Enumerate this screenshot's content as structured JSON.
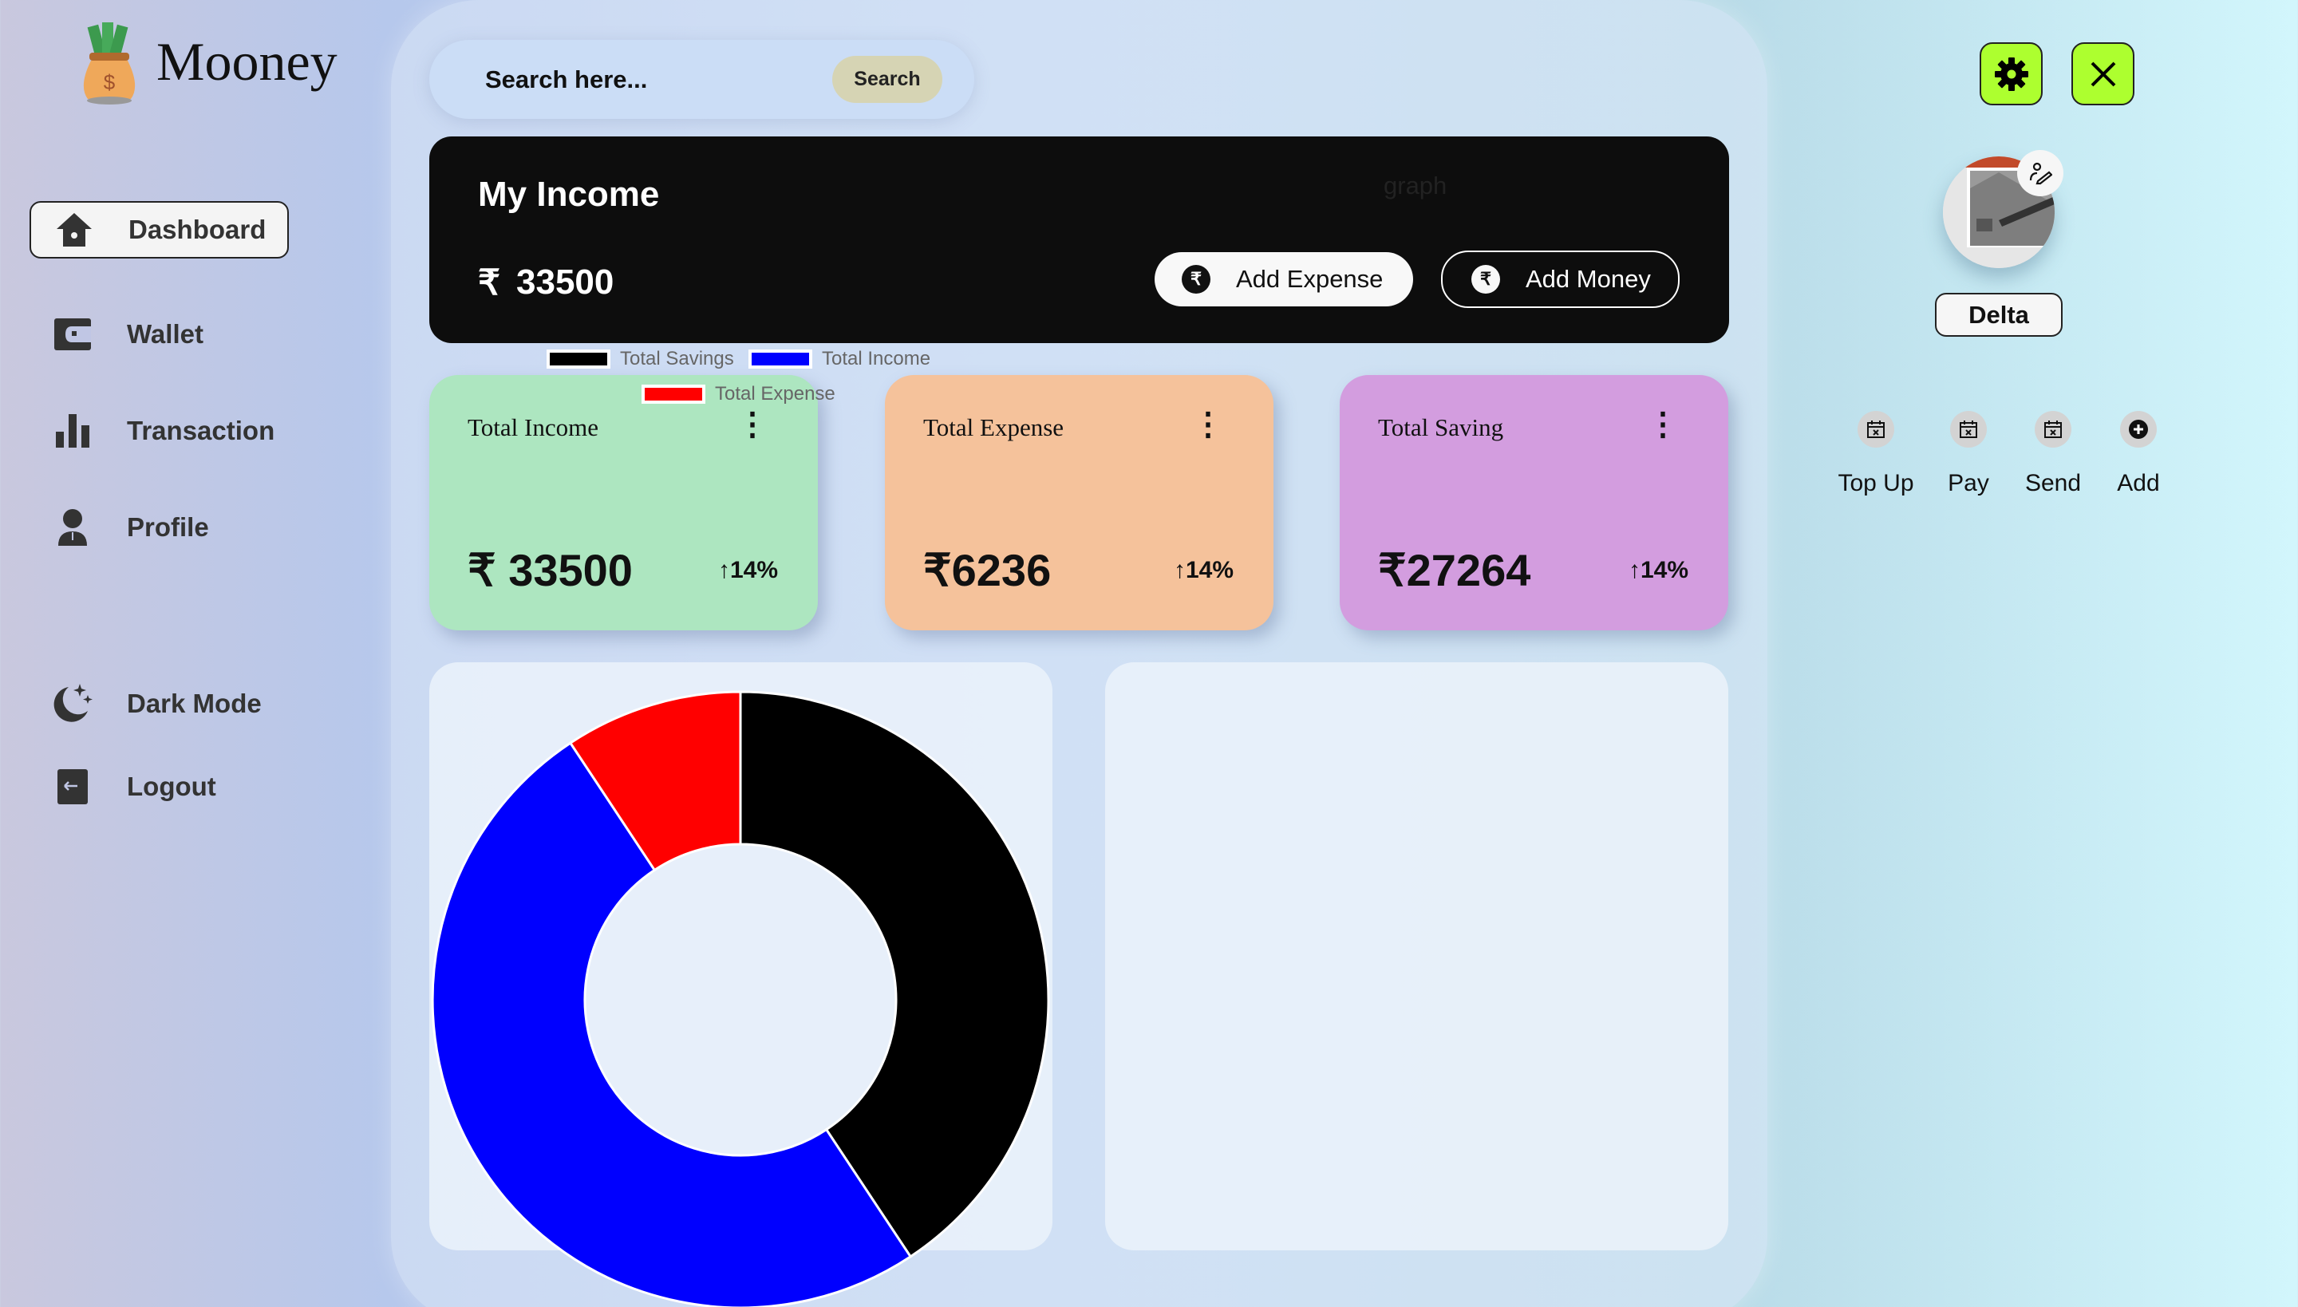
{
  "app": {
    "name": "Mooney"
  },
  "sidebar": {
    "items": [
      {
        "label": "Dashboard",
        "icon": "home-icon",
        "active": true
      },
      {
        "label": "Wallet",
        "icon": "wallet-icon"
      },
      {
        "label": "Transaction",
        "icon": "bar-chart-icon"
      },
      {
        "label": "Profile",
        "icon": "user-icon"
      },
      {
        "label": "Dark Mode",
        "icon": "moon-stars-icon"
      },
      {
        "label": "Logout",
        "icon": "logout-icon"
      }
    ]
  },
  "search": {
    "placeholder": "Search here...",
    "button": "Search"
  },
  "income": {
    "title": "My Income",
    "currency": "₹",
    "amount": "33500",
    "graph_label": "graph",
    "add_expense": "Add Expense",
    "add_money": "Add Money"
  },
  "cards": [
    {
      "title": "Total Income",
      "value": "₹ 33500",
      "change": "↑14%",
      "color": "#ade6c0"
    },
    {
      "title": "Total Expense",
      "value": "₹6236",
      "change": "↑14%",
      "color": "#f5c29b"
    },
    {
      "title": "Total Saving",
      "value": "₹27264",
      "change": "↑14%",
      "color": "#d39ddf"
    }
  ],
  "chart_data": {
    "type": "pie",
    "donut": true,
    "legend_position": "top",
    "series": [
      {
        "name": "Total Savings",
        "value": 27264,
        "color": "#000000"
      },
      {
        "name": "Total Income",
        "value": 33500,
        "color": "#0000ff"
      },
      {
        "name": "Total Expense",
        "value": 6236,
        "color": "#ff0000"
      }
    ]
  },
  "right": {
    "accent": "#adff2f",
    "user_name": "Delta",
    "actions": [
      {
        "label": "Top Up",
        "icon": "calendar-x-icon"
      },
      {
        "label": "Pay",
        "icon": "calendar-x-icon"
      },
      {
        "label": "Send",
        "icon": "calendar-x-icon"
      },
      {
        "label": "Add",
        "icon": "plus-circle-icon"
      }
    ]
  }
}
